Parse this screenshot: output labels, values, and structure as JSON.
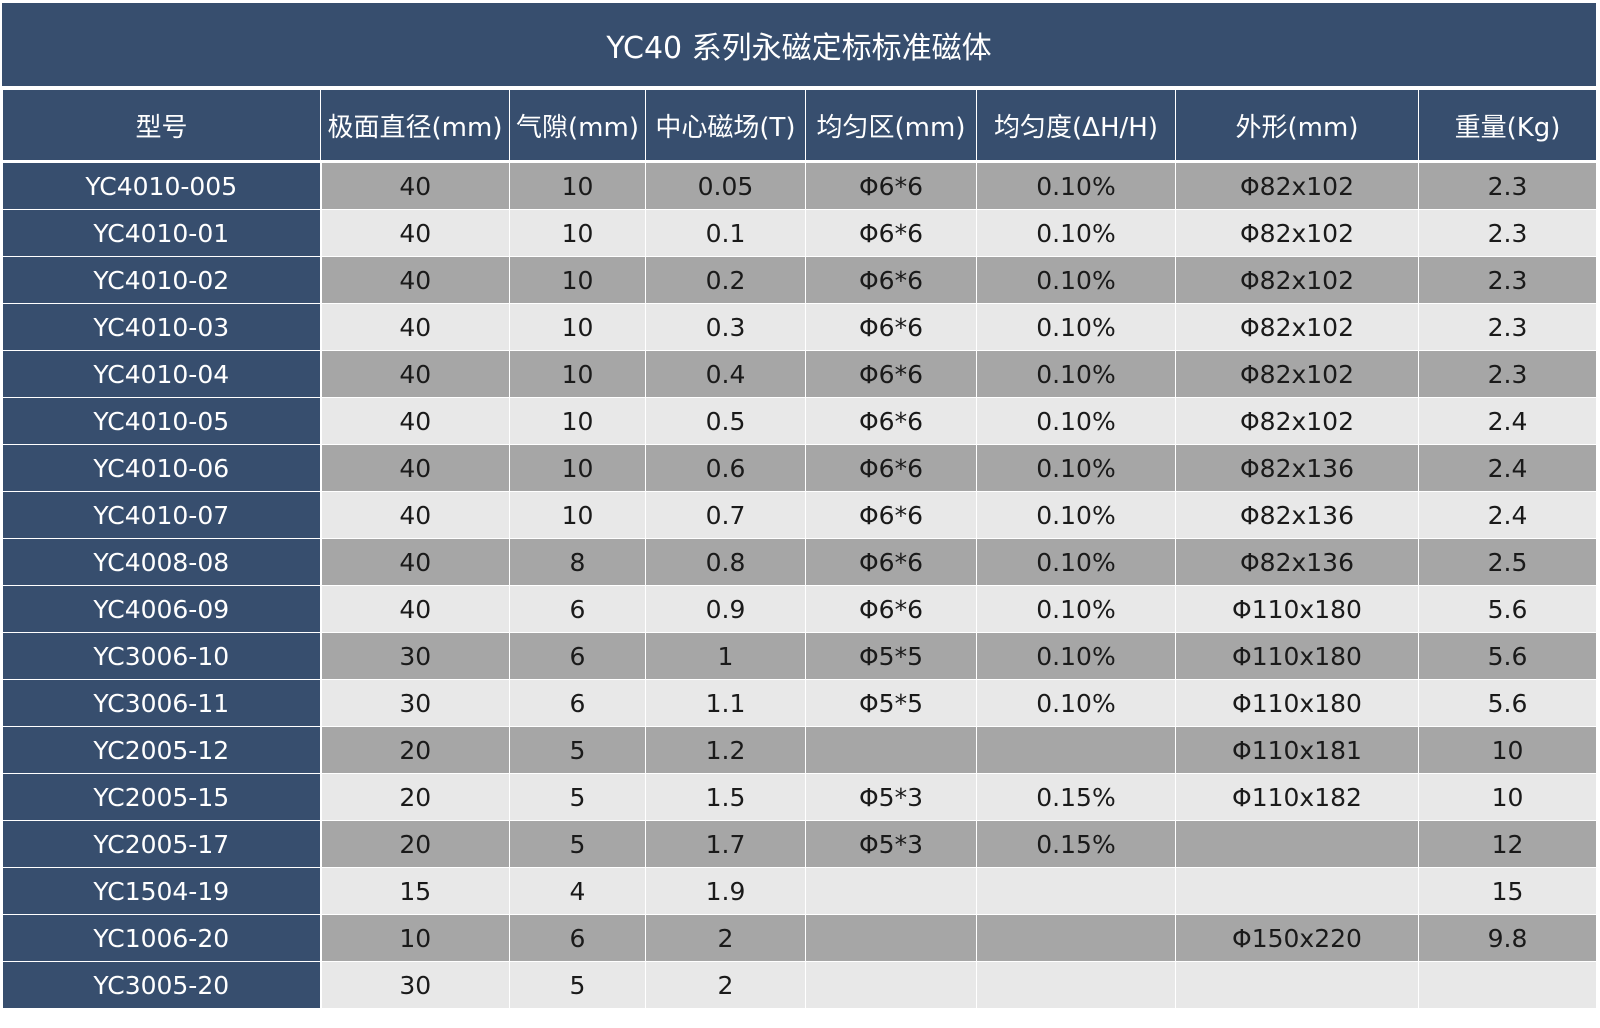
{
  "title": "YC40 系列永磁定标标准磁体",
  "headers": [
    "型号",
    "极面直径(mm)",
    "气隙(mm)",
    "中心磁场(T)",
    "均匀区(mm)",
    "均匀度(ΔH/H)",
    "外形(mm)",
    "重量(Kg)"
  ],
  "rows": [
    [
      "YC4010-005",
      "40",
      "10",
      "0.05",
      "Φ6*6",
      "0.10%",
      "Φ82x102",
      "2.3"
    ],
    [
      "YC4010-01",
      "40",
      "10",
      "0.1",
      "Φ6*6",
      "0.10%",
      "Φ82x102",
      "2.3"
    ],
    [
      "YC4010-02",
      "40",
      "10",
      "0.2",
      "Φ6*6",
      "0.10%",
      "Φ82x102",
      "2.3"
    ],
    [
      "YC4010-03",
      "40",
      "10",
      "0.3",
      "Φ6*6",
      "0.10%",
      "Φ82x102",
      "2.3"
    ],
    [
      "YC4010-04",
      "40",
      "10",
      "0.4",
      "Φ6*6",
      "0.10%",
      "Φ82x102",
      "2.3"
    ],
    [
      "YC4010-05",
      "40",
      "10",
      "0.5",
      "Φ6*6",
      "0.10%",
      "Φ82x102",
      "2.4"
    ],
    [
      "YC4010-06",
      "40",
      "10",
      "0.6",
      "Φ6*6",
      "0.10%",
      "Φ82x136",
      "2.4"
    ],
    [
      "YC4010-07",
      "40",
      "10",
      "0.7",
      "Φ6*6",
      "0.10%",
      "Φ82x136",
      "2.4"
    ],
    [
      "YC4008-08",
      "40",
      "8",
      "0.8",
      "Φ6*6",
      "0.10%",
      "Φ82x136",
      "2.5"
    ],
    [
      "YC4006-09",
      "40",
      "6",
      "0.9",
      "Φ6*6",
      "0.10%",
      "Φ110x180",
      "5.6"
    ],
    [
      "YC3006-10",
      "30",
      "6",
      "1",
      "Φ5*5",
      "0.10%",
      "Φ110x180",
      "5.6"
    ],
    [
      "YC3006-11",
      "30",
      "6",
      "1.1",
      "Φ5*5",
      "0.10%",
      "Φ110x180",
      "5.6"
    ],
    [
      "YC2005-12",
      "20",
      "5",
      "1.2",
      "",
      "",
      "Φ110x181",
      "10"
    ],
    [
      "YC2005-15",
      "20",
      "5",
      "1.5",
      "Φ5*3",
      "0.15%",
      "Φ110x182",
      "10"
    ],
    [
      "YC2005-17",
      "20",
      "5",
      "1.7",
      "Φ5*3",
      "0.15%",
      "",
      "12"
    ],
    [
      "YC1504-19",
      "15",
      "4",
      "1.9",
      "",
      "",
      "",
      "15"
    ],
    [
      "YC1006-20",
      "10",
      "6",
      "2",
      "",
      "",
      "Φ150x220",
      "9.8"
    ],
    [
      "YC3005-20",
      "30",
      "5",
      "2",
      "",
      "",
      "",
      ""
    ]
  ],
  "colors": {
    "header_bg": "#374e6e",
    "row_dark": "#a6a6a6",
    "row_light": "#e8e8e8"
  }
}
